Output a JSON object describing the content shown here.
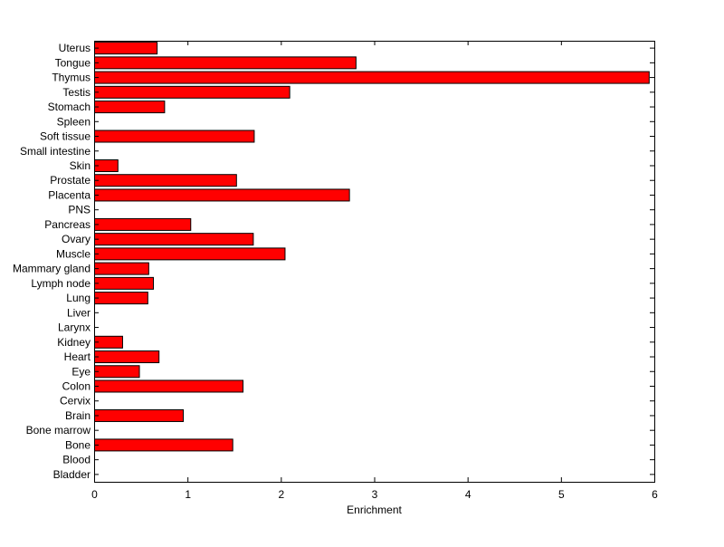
{
  "chart_data": {
    "type": "bar",
    "orientation": "horizontal",
    "title": "",
    "xlabel": "Enrichment",
    "ylabel": "",
    "xlim": [
      0,
      6
    ],
    "xticks": [
      0,
      1,
      2,
      3,
      4,
      5,
      6
    ],
    "grid": false,
    "bar_color": "#ff0000",
    "categories": [
      "Uterus",
      "Tongue",
      "Thymus",
      "Testis",
      "Stomach",
      "Spleen",
      "Soft tissue",
      "Small intestine",
      "Skin",
      "Prostate",
      "Placenta",
      "PNS",
      "Pancreas",
      "Ovary",
      "Muscle",
      "Mammary gland",
      "Lymph node",
      "Lung",
      "Liver",
      "Larynx",
      "Kidney",
      "Heart",
      "Eye",
      "Colon",
      "Cervix",
      "Brain",
      "Bone marrow",
      "Bone",
      "Blood",
      "Bladder"
    ],
    "values": [
      0.67,
      2.8,
      5.94,
      2.09,
      0.75,
      0,
      1.71,
      0,
      0.25,
      1.52,
      2.73,
      0,
      1.03,
      1.7,
      2.04,
      0.58,
      0.63,
      0.57,
      0,
      0,
      0.3,
      0.69,
      0.48,
      1.59,
      0,
      0.95,
      0,
      1.48,
      0,
      0
    ]
  }
}
